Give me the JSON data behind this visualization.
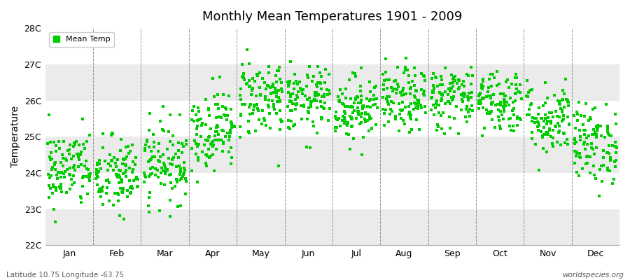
{
  "title": "Monthly Mean Temperatures 1901 - 2009",
  "ylabel": "Temperature",
  "xlabel": "",
  "footer_left": "Latitude 10.75 Longitude -63.75",
  "footer_right": "worldspecies.org",
  "legend_label": "Mean Temp",
  "marker_color": "#00CC00",
  "marker": "s",
  "marker_size": 2.5,
  "ylim": [
    22,
    28
  ],
  "ytick_labels": [
    "22C",
    "23C",
    "24C",
    "25C",
    "26C",
    "27C",
    "28C"
  ],
  "ytick_values": [
    22,
    23,
    24,
    25,
    26,
    27,
    28
  ],
  "months": [
    "Jan",
    "Feb",
    "Mar",
    "Apr",
    "May",
    "Jun",
    "Jul",
    "Aug",
    "Sep",
    "Oct",
    "Nov",
    "Dec"
  ],
  "month_means": [
    24.1,
    23.9,
    24.3,
    25.2,
    26.1,
    26.0,
    25.8,
    26.0,
    26.1,
    26.0,
    25.5,
    24.8
  ],
  "month_stds": [
    0.55,
    0.55,
    0.55,
    0.55,
    0.55,
    0.45,
    0.45,
    0.45,
    0.45,
    0.45,
    0.5,
    0.55
  ],
  "n_years": 109,
  "seed": 42,
  "bg_color": "#ffffff",
  "band_colors": [
    "#f0f0f0",
    "#ffffff"
  ],
  "band_yticks": [
    22,
    23,
    24,
    25,
    26,
    27,
    28
  ],
  "vline_color": "#666666",
  "spine_color": "#aaaaaa"
}
